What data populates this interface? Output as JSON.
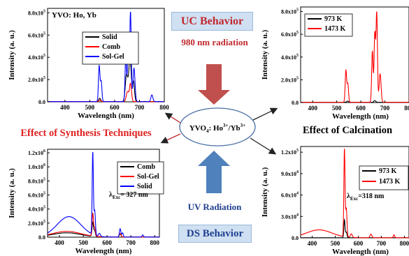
{
  "center": {
    "compound_main": "YVO",
    "compound_sub": "4",
    "compound_ions": ": Ho",
    "ho_sup": "3+",
    "slash": "/Yb",
    "yb_sup": "3+"
  },
  "uc": {
    "title": "UC Behavior",
    "radiation": "980 nm radiation"
  },
  "ds": {
    "title": "DS Behavior",
    "radiation": "UV Radiation"
  },
  "captions": {
    "synthesis": "Effect of Synthesis Techniques",
    "calcination": "Effect of Calcination"
  },
  "colors": {
    "black": "#000000",
    "red": "#ff0000",
    "blue": "#0000ff",
    "arrow_red": "#c0504d",
    "arrow_blue": "#4f81bd",
    "accent_red": "#c0282d",
    "accent_blue": "#1f3f8f"
  },
  "chart_data": [
    {
      "id": "tl",
      "type": "line",
      "title": "YVO: Ho, Yb",
      "xlabel": "Wavelength (nm)",
      "ylabel": "Intensity (a. u.)",
      "xlim": [
        330,
        800
      ],
      "ylim": [
        0,
        8.4
      ],
      "x_ticks": [
        400,
        500,
        600,
        700,
        800
      ],
      "y_ticks": [
        {
          "v": 0,
          "label": "0.0"
        },
        {
          "v": 2,
          "label": "2.0x10",
          "exp": "5"
        },
        {
          "v": 4,
          "label": "4.0x10",
          "exp": "5"
        },
        {
          "v": 6,
          "label": "6.0x10",
          "exp": "5"
        },
        {
          "v": 8,
          "label": "8.0x10",
          "exp": "5"
        }
      ],
      "series": [
        {
          "name": "Solid",
          "color": "#000000",
          "peaks": [
            [
              540,
              0.3,
              4
            ],
            [
              648,
              2.4,
              5
            ],
            [
              662,
              3.8,
              5
            ],
            [
              676,
              1.8,
              4
            ]
          ]
        },
        {
          "name": "Comb",
          "color": "#ff0000",
          "peaks": [
            [
              540,
              0.15,
              4
            ],
            [
              652,
              0.9,
              5
            ],
            [
              664,
              1.6,
              4
            ]
          ]
        },
        {
          "name": "Sol-Gel",
          "color": "#0000ff",
          "peaks": [
            [
              538,
              3.2,
              3
            ],
            [
              546,
              1.8,
              3
            ],
            [
              645,
              4.0,
              3
            ],
            [
              655,
              5.8,
              3
            ],
            [
              664,
              8.0,
              3
            ],
            [
              678,
              3.0,
              4
            ],
            [
              750,
              0.6,
              4
            ]
          ]
        }
      ]
    },
    {
      "id": "tr",
      "type": "line",
      "xlabel": "Wavelength (nm)",
      "ylabel": "Intensity (a. u.)",
      "xlim": [
        350,
        800
      ],
      "ylim": [
        0,
        8.4
      ],
      "x_ticks": [
        400,
        500,
        600,
        700,
        800
      ],
      "y_ticks": [
        {
          "v": 0,
          "label": "0.0"
        },
        {
          "v": 2,
          "label": "2.0x10",
          "exp": "5"
        },
        {
          "v": 4,
          "label": "4.0x10",
          "exp": "5"
        },
        {
          "v": 6,
          "label": "6.0x10",
          "exp": "5"
        },
        {
          "v": 8,
          "label": "8.0x10",
          "exp": "5"
        }
      ],
      "series": [
        {
          "name": "973 K",
          "color": "#000000",
          "peaks": [
            [
              545,
              0.1,
              4
            ],
            [
              658,
              0.15,
              4
            ]
          ]
        },
        {
          "name": "1473 K",
          "color": "#ff0000",
          "peaks": [
            [
              538,
              2.8,
              3
            ],
            [
              546,
              1.6,
              3
            ],
            [
              648,
              4.5,
              3
            ],
            [
              658,
              6.0,
              3
            ],
            [
              666,
              7.8,
              3
            ],
            [
              680,
              2.5,
              4
            ]
          ]
        }
      ]
    },
    {
      "id": "bl",
      "type": "line",
      "xlabel": "Wavelength (nm)",
      "ylabel": "Intensity (a. u.)",
      "xlim": [
        350,
        820
      ],
      "ylim": [
        0,
        12.5
      ],
      "x_ticks": [
        400,
        500,
        600,
        700,
        800
      ],
      "y_ticks": [
        {
          "v": 0,
          "label": "0.0"
        },
        {
          "v": 2,
          "label": "2.0x10",
          "exp": "5"
        },
        {
          "v": 4,
          "label": "4.0x10",
          "exp": "5"
        },
        {
          "v": 6,
          "label": "6.0x10",
          "exp": "5"
        },
        {
          "v": 8,
          "label": "8.0x10",
          "exp": "5"
        },
        {
          "v": 10,
          "label": "1.0x10",
          "exp": "6"
        },
        {
          "v": 12,
          "label": "1.2x10",
          "exp": "6"
        }
      ],
      "annotation": {
        "text": "λ",
        "sub": "Exc",
        "rest": "= 327 nm"
      },
      "series": [
        {
          "name": "Comb",
          "color": "#000000",
          "base": [
            [
              430,
              0.6,
              60
            ]
          ],
          "peaks": [
            [
              540,
              2.0,
              3
            ],
            [
              548,
              0.8,
              3
            ],
            [
              655,
              0.4,
              4
            ]
          ]
        },
        {
          "name": "Sol-Gel",
          "color": "#ff0000",
          "base": [
            [
              430,
              0.8,
              60
            ]
          ],
          "peaks": [
            [
              540,
              3.2,
              3
            ],
            [
              548,
              1.2,
              3
            ],
            [
              655,
              0.5,
              4
            ]
          ]
        },
        {
          "name": "Solid",
          "color": "#0000ff",
          "base": [
            [
              440,
              2.9,
              50
            ]
          ],
          "peaks": [
            [
              540,
              11.6,
              2.5
            ],
            [
              548,
              3.5,
              3
            ],
            [
              568,
              0.4,
              4
            ],
            [
              655,
              1.2,
              3
            ],
            [
              665,
              0.6,
              3
            ],
            [
              750,
              0.3,
              3
            ]
          ]
        }
      ]
    },
    {
      "id": "br",
      "type": "line",
      "xlabel": "Wavelength (nm)",
      "ylabel": "Intensity (a. u.)",
      "xlim": [
        350,
        820
      ],
      "ylim": [
        0,
        12.8
      ],
      "x_ticks": [
        400,
        500,
        600,
        700,
        800
      ],
      "y_ticks": [
        {
          "v": 0,
          "label": "0.0"
        },
        {
          "v": 3,
          "label": "3.0x10",
          "exp": "4"
        },
        {
          "v": 6,
          "label": "6.0x10",
          "exp": "4"
        },
        {
          "v": 9,
          "label": "9.0x10",
          "exp": "4"
        },
        {
          "v": 12,
          "label": "1.2x10",
          "exp": "5"
        }
      ],
      "annotation": {
        "text": "λ",
        "sub": "Exc",
        "rest": "=318 nm"
      },
      "series": [
        {
          "name": "973 K",
          "color": "#000000",
          "base": [],
          "peaks": [
            [
              540,
              2.5,
              2.5
            ],
            [
              548,
              0.8,
              3
            ]
          ]
        },
        {
          "name": "1473 K",
          "color": "#ff0000",
          "base": [
            [
              430,
              1.1,
              55
            ]
          ],
          "peaks": [
            [
              540,
              12.2,
              2.5
            ],
            [
              548,
              4.0,
              3
            ],
            [
              570,
              0.5,
              4
            ],
            [
              655,
              0.5,
              4
            ],
            [
              755,
              0.4,
              3
            ]
          ]
        }
      ]
    }
  ]
}
